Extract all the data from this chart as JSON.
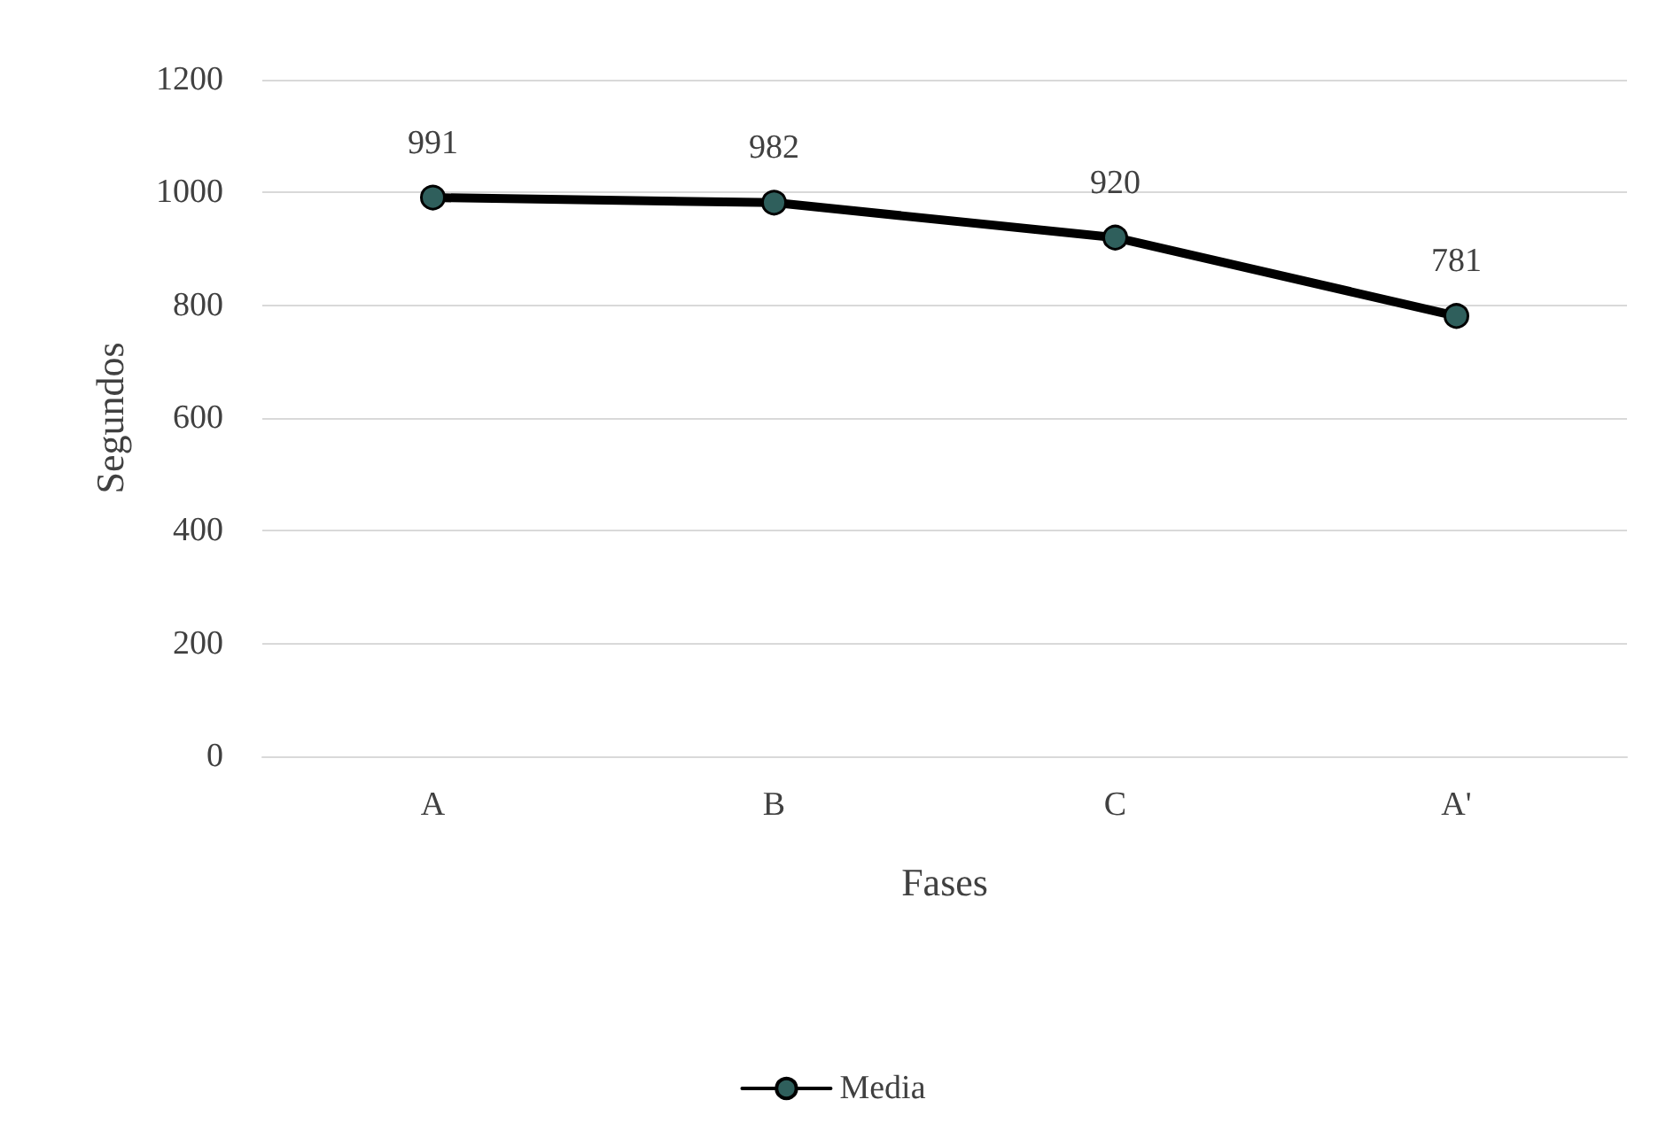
{
  "chart_data": {
    "type": "line",
    "xlabel": "Fases",
    "ylabel": "Segundos",
    "categories": [
      "A",
      "B",
      "C",
      "A'"
    ],
    "series": [
      {
        "name": "Media",
        "color": "#2f5f5c",
        "values": [
          991,
          982,
          920,
          781
        ]
      }
    ],
    "ylim": [
      0,
      1200
    ],
    "yticks": [
      0,
      200,
      400,
      600,
      800,
      1000,
      1200
    ],
    "grid": "y",
    "legend": "bottom",
    "marker": "circle",
    "line_style": "solid",
    "data_labels": true
  }
}
